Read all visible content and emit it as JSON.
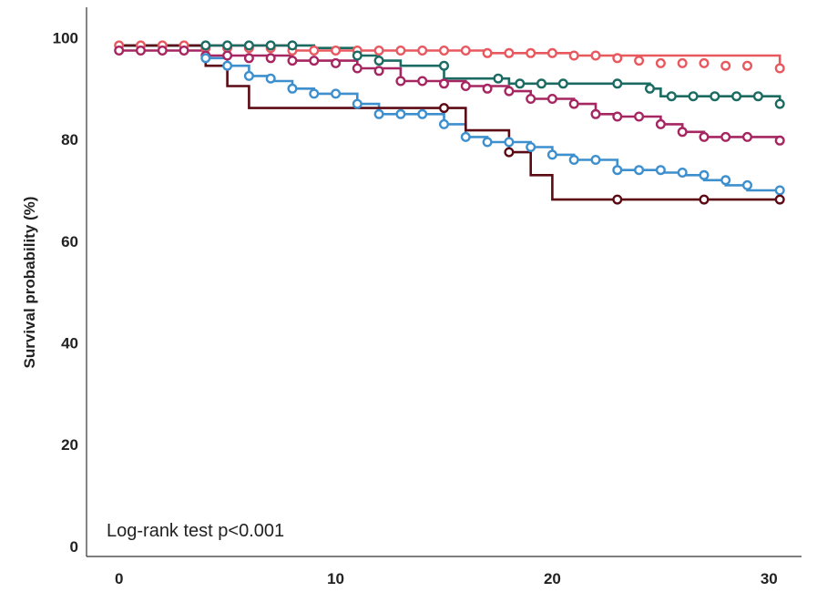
{
  "chart_data": {
    "type": "line",
    "subtype": "kaplan-meier step plot with censor markers",
    "title": "",
    "xlabel": "",
    "ylabel": "Survival probability (%)",
    "xlim": [
      -1.5,
      31.5
    ],
    "ylim": [
      -2,
      106
    ],
    "x_ticks": [
      0,
      10,
      20,
      30
    ],
    "y_ticks": [
      0,
      20,
      40,
      60,
      80,
      100
    ],
    "grid": false,
    "legend": "none",
    "annotation": "Log-rank test p<0.001",
    "series": [
      {
        "color": "#E8585F",
        "steps": [
          [
            0,
            98.5
          ],
          [
            8,
            97.5
          ],
          [
            17,
            97
          ],
          [
            21,
            96.5
          ],
          [
            30.5,
            94
          ]
        ],
        "censors": [
          [
            0,
            98.5
          ],
          [
            1,
            98.5
          ],
          [
            2,
            98.5
          ],
          [
            3,
            98.5
          ],
          [
            4,
            98
          ],
          [
            5,
            98
          ],
          [
            6,
            98
          ],
          [
            7,
            98
          ],
          [
            8,
            97.5
          ],
          [
            9,
            97.5
          ],
          [
            10,
            97.5
          ],
          [
            11,
            97.5
          ],
          [
            12,
            97.5
          ],
          [
            13,
            97.5
          ],
          [
            14,
            97.5
          ],
          [
            15,
            97.5
          ],
          [
            16,
            97.5
          ],
          [
            17,
            97
          ],
          [
            18,
            97
          ],
          [
            19,
            97
          ],
          [
            20,
            97
          ],
          [
            21,
            96.5
          ],
          [
            22,
            96.5
          ],
          [
            23,
            96
          ],
          [
            24,
            95.5
          ],
          [
            25,
            95
          ],
          [
            26,
            95
          ],
          [
            27,
            95
          ],
          [
            28,
            94.5
          ],
          [
            29,
            94.5
          ],
          [
            30.5,
            94
          ]
        ]
      },
      {
        "color": "#1B6B62",
        "steps": [
          [
            0,
            98.5
          ],
          [
            9,
            98
          ],
          [
            11,
            96.5
          ],
          [
            12,
            95.5
          ],
          [
            13,
            94.5
          ],
          [
            15,
            92
          ],
          [
            18,
            91
          ],
          [
            24.5,
            90
          ],
          [
            25,
            88.5
          ],
          [
            30.5,
            87
          ]
        ],
        "censors": [
          [
            4,
            98.5
          ],
          [
            5,
            98.5
          ],
          [
            6,
            98.5
          ],
          [
            7,
            98.5
          ],
          [
            8,
            98.5
          ],
          [
            11,
            96.5
          ],
          [
            12,
            95.5
          ],
          [
            15,
            94.5
          ],
          [
            17.5,
            92
          ],
          [
            18.5,
            91
          ],
          [
            19.5,
            91
          ],
          [
            20.5,
            91
          ],
          [
            23,
            91
          ],
          [
            24.5,
            90
          ],
          [
            25.5,
            88.5
          ],
          [
            26.5,
            88.5
          ],
          [
            27.5,
            88.5
          ],
          [
            28.5,
            88.5
          ],
          [
            29.5,
            88.5
          ],
          [
            30.5,
            87
          ]
        ]
      },
      {
        "color": "#A52660",
        "steps": [
          [
            0,
            97.5
          ],
          [
            4,
            96.5
          ],
          [
            8,
            95.5
          ],
          [
            11,
            94
          ],
          [
            13,
            91.5
          ],
          [
            16,
            90.5
          ],
          [
            18,
            89.5
          ],
          [
            19,
            88
          ],
          [
            21,
            87
          ],
          [
            22,
            85
          ],
          [
            23,
            84.5
          ],
          [
            25,
            83
          ],
          [
            26,
            81.5
          ],
          [
            27,
            80.5
          ],
          [
            30.5,
            79.8
          ]
        ],
        "censors": [
          [
            0,
            97.5
          ],
          [
            1,
            97.5
          ],
          [
            2,
            97.5
          ],
          [
            3,
            97.5
          ],
          [
            4,
            96.5
          ],
          [
            5,
            96.5
          ],
          [
            6,
            96
          ],
          [
            7,
            96
          ],
          [
            8,
            95.5
          ],
          [
            9,
            95.5
          ],
          [
            10,
            95
          ],
          [
            11,
            94
          ],
          [
            12,
            93.5
          ],
          [
            13,
            91.5
          ],
          [
            14,
            91.5
          ],
          [
            15,
            91
          ],
          [
            16,
            90.5
          ],
          [
            17,
            90
          ],
          [
            18,
            89.5
          ],
          [
            19,
            88
          ],
          [
            20,
            88
          ],
          [
            21,
            87
          ],
          [
            22,
            85
          ],
          [
            23,
            84.5
          ],
          [
            24,
            84.5
          ],
          [
            25,
            83
          ],
          [
            26,
            81.5
          ],
          [
            27,
            80.5
          ],
          [
            28,
            80.5
          ],
          [
            29,
            80.5
          ],
          [
            30.5,
            79.8
          ]
        ]
      },
      {
        "color": "#3D8FCE",
        "steps": [
          [
            0,
            98.5
          ],
          [
            4,
            96
          ],
          [
            5,
            94.5
          ],
          [
            6,
            92.5
          ],
          [
            7,
            91.5
          ],
          [
            8,
            90
          ],
          [
            9,
            89
          ],
          [
            11,
            87
          ],
          [
            12,
            85
          ],
          [
            15,
            83
          ],
          [
            16,
            80.5
          ],
          [
            17,
            79.5
          ],
          [
            19,
            78.5
          ],
          [
            20,
            77
          ],
          [
            21,
            76
          ],
          [
            23,
            74
          ],
          [
            25,
            73.5
          ],
          [
            26,
            73
          ],
          [
            27,
            72
          ],
          [
            28,
            71
          ],
          [
            29,
            70
          ]
        ],
        "censors": [
          [
            4,
            96
          ],
          [
            5,
            94.5
          ],
          [
            6,
            92.5
          ],
          [
            7,
            92
          ],
          [
            8,
            90
          ],
          [
            9,
            89
          ],
          [
            10,
            89
          ],
          [
            11,
            87
          ],
          [
            12,
            85
          ],
          [
            13,
            85
          ],
          [
            14,
            85
          ],
          [
            15,
            83
          ],
          [
            16,
            80.5
          ],
          [
            17,
            79.5
          ],
          [
            18,
            79.5
          ],
          [
            19,
            78.5
          ],
          [
            20,
            77
          ],
          [
            21,
            76
          ],
          [
            22,
            76
          ],
          [
            23,
            74
          ],
          [
            24,
            74
          ],
          [
            25,
            74
          ],
          [
            26,
            73.5
          ],
          [
            27,
            73
          ],
          [
            28,
            72
          ],
          [
            29,
            71
          ],
          [
            30.5,
            70
          ]
        ]
      },
      {
        "color": "#5C0A14",
        "steps": [
          [
            0,
            98.5
          ],
          [
            4,
            94.5
          ],
          [
            5,
            90.5
          ],
          [
            6,
            86.2
          ],
          [
            15,
            86.2
          ],
          [
            16,
            81.8
          ],
          [
            18,
            77.5
          ],
          [
            19,
            73
          ],
          [
            20,
            68.2
          ],
          [
            30.5,
            68.2
          ]
        ],
        "censors": [
          [
            15,
            86.2
          ],
          [
            18,
            77.5
          ],
          [
            23,
            68.2
          ],
          [
            27,
            68.2
          ],
          [
            30.5,
            68.2
          ]
        ]
      }
    ]
  }
}
